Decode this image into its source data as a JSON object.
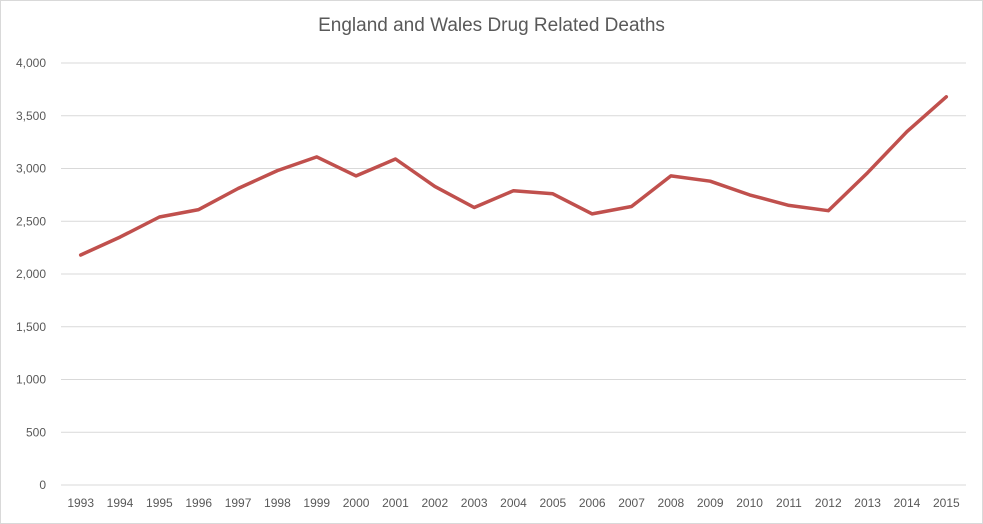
{
  "chart_data": {
    "type": "line",
    "title": "England and Wales Drug Related Deaths",
    "xlabel": "",
    "ylabel": "",
    "categories": [
      "1993",
      "1994",
      "1995",
      "1996",
      "1997",
      "1998",
      "1999",
      "2000",
      "2001",
      "2002",
      "2003",
      "2004",
      "2005",
      "2006",
      "2007",
      "2008",
      "2009",
      "2010",
      "2011",
      "2012",
      "2013",
      "2014",
      "2015"
    ],
    "series": [
      {
        "values": [
          2180,
          2350,
          2540,
          2610,
          2810,
          2980,
          3110,
          2930,
          3090,
          2830,
          2630,
          2790,
          2760,
          2570,
          2640,
          2930,
          2880,
          2750,
          2650,
          2600,
          2960,
          3350,
          3680
        ],
        "color": "#c0504d"
      }
    ],
    "ylim": [
      0,
      4000
    ],
    "yticks": [
      0,
      500,
      1000,
      1500,
      2000,
      2500,
      3000,
      3500,
      4000
    ],
    "ytick_labels": [
      "0",
      "500",
      "1,000",
      "1,500",
      "2,000",
      "2,500",
      "3,000",
      "3,500",
      "4,000"
    ],
    "grid": true,
    "legend": "none"
  }
}
